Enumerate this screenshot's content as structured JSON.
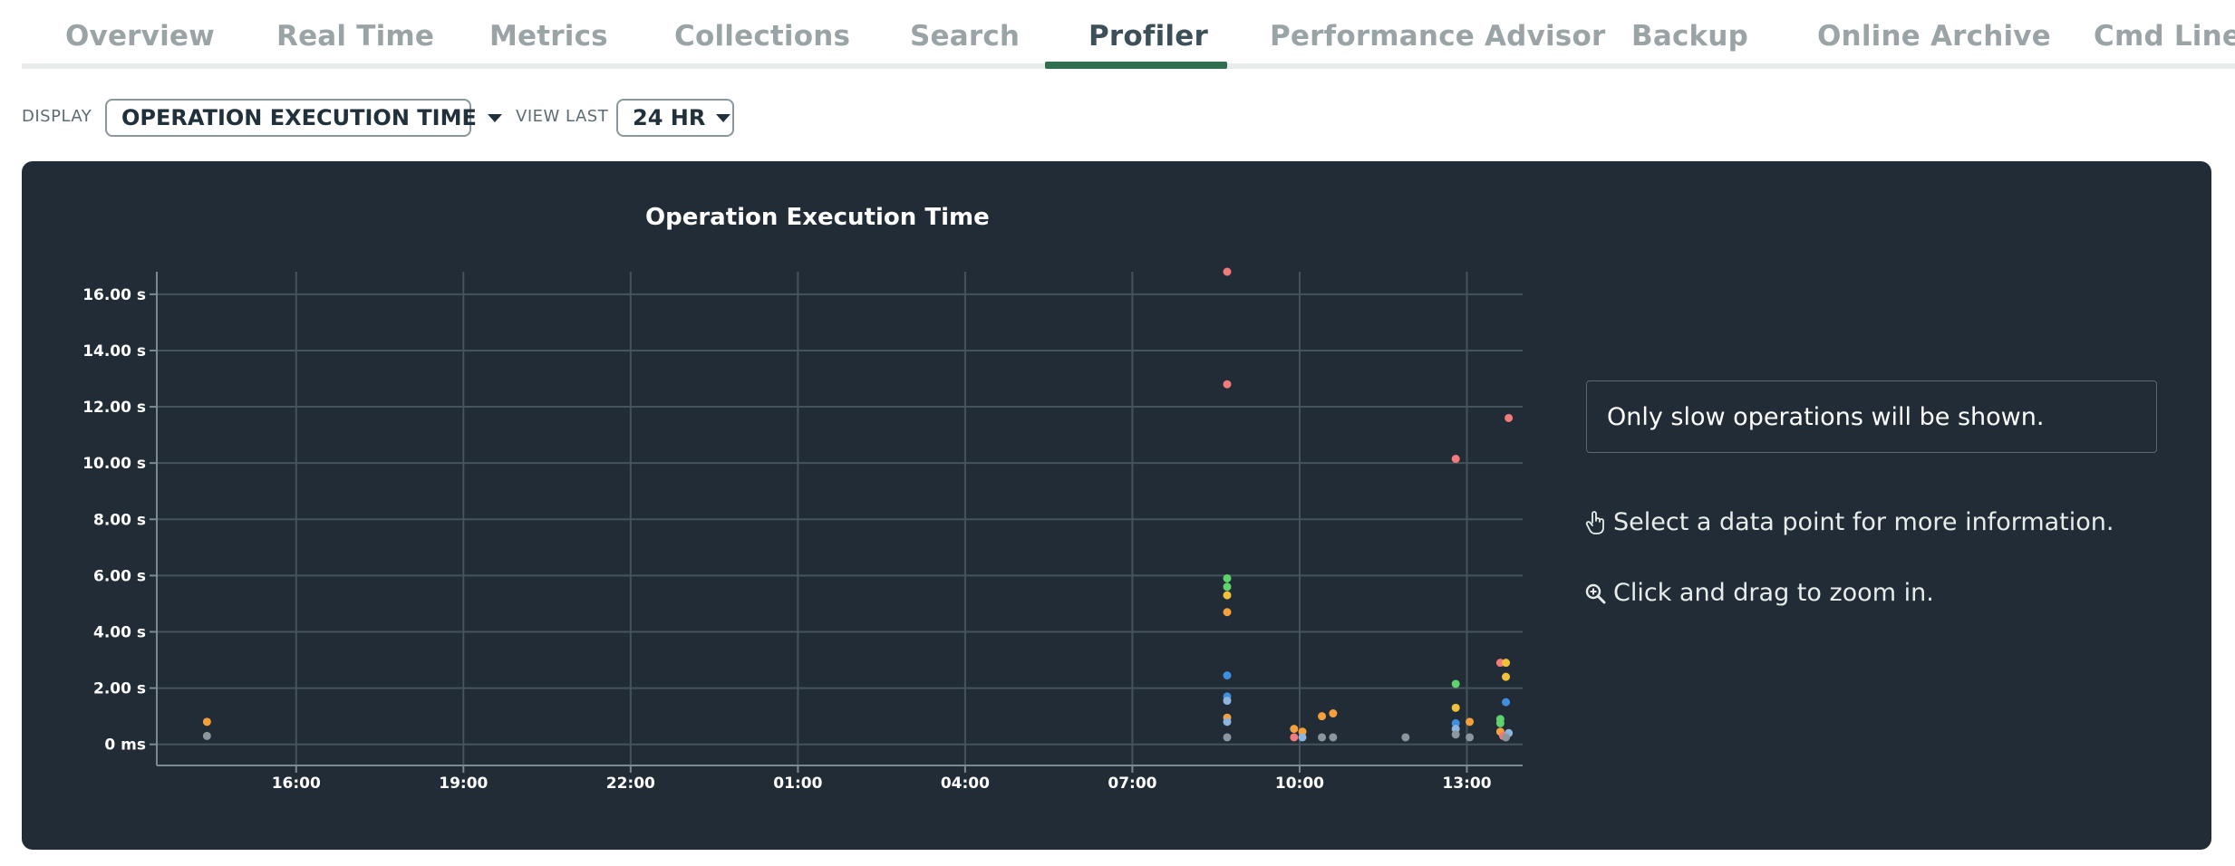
{
  "tabs": [
    {
      "label": "Overview",
      "active": false
    },
    {
      "label": "Real Time",
      "active": false
    },
    {
      "label": "Metrics",
      "active": false
    },
    {
      "label": "Collections",
      "active": false
    },
    {
      "label": "Search",
      "active": false
    },
    {
      "label": "Profiler",
      "active": true
    },
    {
      "label": "Performance Advisor",
      "active": false
    },
    {
      "label": "Backup",
      "active": false
    },
    {
      "label": "Online Archive",
      "active": false
    },
    {
      "label": "Cmd Line T",
      "active": false
    }
  ],
  "controls": {
    "display_label": "DISPLAY",
    "display_value": "OPERATION EXECUTION TIME",
    "view_last_label": "VIEW LAST",
    "view_last_value": "24 HR"
  },
  "colors": {
    "accent": "#2f6e4f",
    "panel_bg": "#212c36",
    "grid": "#46525c",
    "axis": "#7d8a92"
  },
  "side_panel": {
    "notice": "Only slow operations will be shown.",
    "hint_select": "Select a data point for more information.",
    "hint_select_icon": "pointer-hand-icon",
    "hint_zoom": "Click and drag to zoom in.",
    "hint_zoom_icon": "zoom-in-icon"
  },
  "chart_data": {
    "type": "scatter",
    "title": "Operation Execution Time",
    "xlabel": "",
    "ylabel": "",
    "y_unit": "s",
    "x_ticks": [
      "16:00",
      "19:00",
      "22:00",
      "01:00",
      "04:00",
      "07:00",
      "10:00",
      "13:00"
    ],
    "x_tick_hours": [
      16,
      19,
      22,
      25,
      28,
      31,
      34,
      37
    ],
    "x_range_hours": [
      13.5,
      38.0
    ],
    "y_ticks": [
      "0 ms",
      "2.00 s",
      "4.00 s",
      "6.00 s",
      "8.00 s",
      "10.00 s",
      "12.00 s",
      "14.00 s",
      "16.00 s"
    ],
    "y_tick_values": [
      0,
      2,
      4,
      6,
      8,
      10,
      12,
      14,
      16
    ],
    "ylim": [
      -0.75,
      16.8
    ],
    "grid": true,
    "points": [
      {
        "x": 14.4,
        "y": 0.8,
        "color": "#f5a03c"
      },
      {
        "x": 14.4,
        "y": 0.3,
        "color": "#8b979c"
      },
      {
        "x": 32.7,
        "y": 16.8,
        "color": "#f27a7a"
      },
      {
        "x": 32.7,
        "y": 12.8,
        "color": "#f27a7a"
      },
      {
        "x": 32.7,
        "y": 5.9,
        "color": "#5fd36b"
      },
      {
        "x": 32.7,
        "y": 5.6,
        "color": "#5fd36b"
      },
      {
        "x": 32.7,
        "y": 5.3,
        "color": "#f0c23c"
      },
      {
        "x": 32.7,
        "y": 4.7,
        "color": "#f5a03c"
      },
      {
        "x": 32.7,
        "y": 2.45,
        "color": "#3f8fe0"
      },
      {
        "x": 32.7,
        "y": 1.7,
        "color": "#3f8fe0"
      },
      {
        "x": 32.7,
        "y": 1.55,
        "color": "#8fb4e0"
      },
      {
        "x": 32.7,
        "y": 0.95,
        "color": "#f5a03c"
      },
      {
        "x": 32.7,
        "y": 0.8,
        "color": "#8fb4e0"
      },
      {
        "x": 32.7,
        "y": 0.25,
        "color": "#8b979c"
      },
      {
        "x": 33.9,
        "y": 0.55,
        "color": "#f5a03c"
      },
      {
        "x": 33.9,
        "y": 0.25,
        "color": "#f27a7a"
      },
      {
        "x": 34.05,
        "y": 0.45,
        "color": "#f5a03c"
      },
      {
        "x": 34.05,
        "y": 0.25,
        "color": "#8fb4e0"
      },
      {
        "x": 34.4,
        "y": 1.0,
        "color": "#f5a03c"
      },
      {
        "x": 34.4,
        "y": 0.25,
        "color": "#8b979c"
      },
      {
        "x": 34.6,
        "y": 1.1,
        "color": "#f5a03c"
      },
      {
        "x": 34.6,
        "y": 0.25,
        "color": "#8b979c"
      },
      {
        "x": 35.9,
        "y": 0.25,
        "color": "#8b979c"
      },
      {
        "x": 36.8,
        "y": 10.15,
        "color": "#f27a7a"
      },
      {
        "x": 36.8,
        "y": 2.15,
        "color": "#5fd36b"
      },
      {
        "x": 36.8,
        "y": 1.3,
        "color": "#f0c23c"
      },
      {
        "x": 36.8,
        "y": 0.75,
        "color": "#3f8fe0"
      },
      {
        "x": 36.8,
        "y": 0.55,
        "color": "#8fb4e0"
      },
      {
        "x": 36.8,
        "y": 0.35,
        "color": "#8b979c"
      },
      {
        "x": 37.05,
        "y": 0.8,
        "color": "#f5a03c"
      },
      {
        "x": 37.05,
        "y": 0.25,
        "color": "#8b979c"
      },
      {
        "x": 37.6,
        "y": 2.9,
        "color": "#f27a7a"
      },
      {
        "x": 37.7,
        "y": 2.9,
        "color": "#f0c23c"
      },
      {
        "x": 37.7,
        "y": 2.4,
        "color": "#f0c23c"
      },
      {
        "x": 37.75,
        "y": 11.6,
        "color": "#f27a7a"
      },
      {
        "x": 37.7,
        "y": 1.5,
        "color": "#3f8fe0"
      },
      {
        "x": 37.6,
        "y": 0.9,
        "color": "#5fd36b"
      },
      {
        "x": 37.6,
        "y": 0.75,
        "color": "#5fd36b"
      },
      {
        "x": 37.6,
        "y": 0.45,
        "color": "#f5a03c"
      },
      {
        "x": 37.65,
        "y": 0.3,
        "color": "#f27a7a"
      },
      {
        "x": 37.75,
        "y": 0.4,
        "color": "#8fb4e0"
      },
      {
        "x": 37.7,
        "y": 0.25,
        "color": "#8b979c"
      }
    ]
  }
}
